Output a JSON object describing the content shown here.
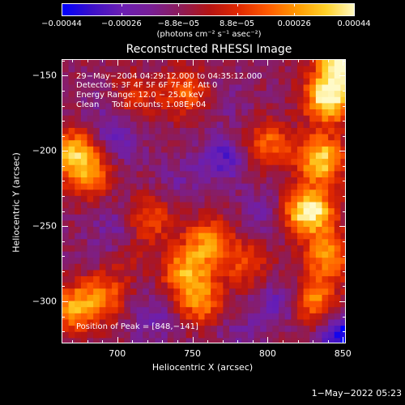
{
  "chart_data": {
    "type": "heatmap",
    "title": "Reconstructed RHESSI Image",
    "xlabel": "Heliocentric X (arcsec)",
    "ylabel": "Heliocentric Y (arcsec)",
    "xlim": [
      663,
      852
    ],
    "ylim": [
      -328,
      -139
    ],
    "x_ticks": [
      700,
      750,
      800,
      850
    ],
    "y_ticks": [
      -150,
      -200,
      -250,
      -300
    ],
    "x_tick_labels": [
      "700",
      "750",
      "800",
      "850"
    ],
    "y_tick_labels": [
      "−150",
      "−200",
      "−250",
      "−300"
    ],
    "colorbar": {
      "min": -0.00044,
      "max": 0.00044,
      "tick_values": [
        -0.00044,
        -0.00026,
        -8.8e-05,
        8.8e-05,
        0.00026,
        0.00044
      ],
      "tick_labels": [
        "−0.00044",
        "−0.00026",
        "−8.8e−05",
        "8.8e−05",
        "0.00026",
        "0.00044"
      ],
      "unit_label": "(photons cm⁻² s⁻¹ asec⁻²)",
      "colormap": [
        "#0000ff",
        "#3c10c8",
        "#6a1fb4",
        "#781f96",
        "#8c1c5a",
        "#b41414",
        "#e02800",
        "#ff5a00",
        "#ff9a00",
        "#ffd22a",
        "#fffac8"
      ]
    },
    "annotations": {
      "line1": "29−May−2004 04:29:12.000 to 04:35:12.000",
      "line2": "Detectors: 3F 4F 5F 6F 7F 8F, Att 0",
      "line3": "Energy Range: 12.0 − 25.0 keV",
      "line4": "Clean     Total counts: 1.08E+04",
      "peak": "Position of Peak = [848,−141]"
    },
    "peak_position": [
      848,
      -141
    ],
    "hot_spots": [
      {
        "x": 840,
        "y": -165,
        "value": 0.00044
      },
      {
        "x": 848,
        "y": -141,
        "value": 0.00044
      },
      {
        "x": 835,
        "y": -205,
        "value": 0.00037
      },
      {
        "x": 830,
        "y": -240,
        "value": 0.0003
      },
      {
        "x": 840,
        "y": -270,
        "value": 0.00026
      },
      {
        "x": 830,
        "y": -300,
        "value": 0.00024
      },
      {
        "x": 670,
        "y": -200,
        "value": 0.00026
      },
      {
        "x": 680,
        "y": -215,
        "value": 0.00022
      },
      {
        "x": 670,
        "y": -305,
        "value": 0.00026
      },
      {
        "x": 690,
        "y": -295,
        "value": 0.00018
      },
      {
        "x": 760,
        "y": -260,
        "value": 0.00024
      },
      {
        "x": 745,
        "y": -280,
        "value": 0.00026
      },
      {
        "x": 755,
        "y": -300,
        "value": 0.00022
      },
      {
        "x": 745,
        "y": -160,
        "value": 0.00018
      },
      {
        "x": 720,
        "y": -245,
        "value": 0.00016
      },
      {
        "x": 800,
        "y": -195,
        "value": 0.00018
      },
      {
        "x": 820,
        "y": -240,
        "value": 0.00014
      },
      {
        "x": 710,
        "y": -165,
        "value": 0.0001
      },
      {
        "x": 785,
        "y": -275,
        "value": 0.00012
      },
      {
        "x": 700,
        "y": -270,
        "value": 0.00012
      }
    ],
    "cold_spots": [
      {
        "x": 700,
        "y": -190,
        "value": -0.00026
      },
      {
        "x": 770,
        "y": -205,
        "value": -0.0003
      },
      {
        "x": 695,
        "y": -270,
        "value": -0.00026
      },
      {
        "x": 700,
        "y": -250,
        "value": -0.00022
      },
      {
        "x": 800,
        "y": -240,
        "value": -0.00022
      },
      {
        "x": 808,
        "y": -300,
        "value": -0.00026
      },
      {
        "x": 850,
        "y": -323,
        "value": -0.00044
      },
      {
        "x": 725,
        "y": -310,
        "value": -0.00022
      },
      {
        "x": 740,
        "y": -220,
        "value": -0.00018
      },
      {
        "x": 770,
        "y": -165,
        "value": -0.00016
      },
      {
        "x": 690,
        "y": -170,
        "value": -0.00016
      },
      {
        "x": 780,
        "y": -320,
        "value": -0.00018
      }
    ],
    "background_value": -8.8e-05
  },
  "footer": {
    "timestamp": "1−May−2022 05:23"
  }
}
